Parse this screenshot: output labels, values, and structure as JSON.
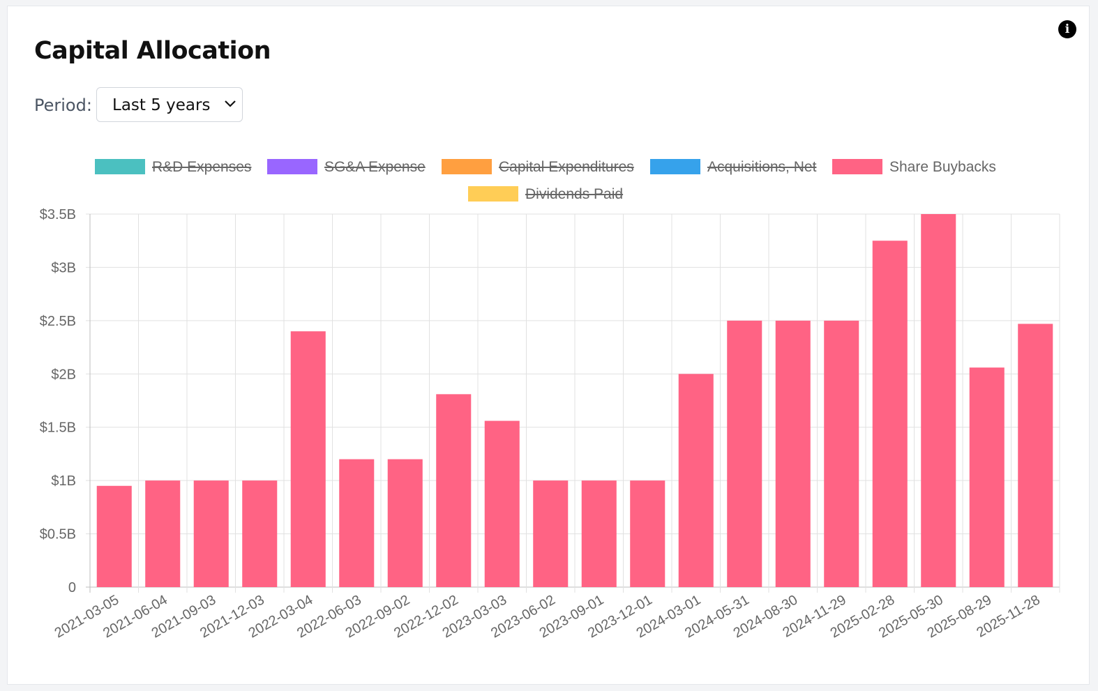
{
  "title": "Capital Allocation",
  "period": {
    "label": "Period:",
    "selected": "Last 5 years"
  },
  "legend": [
    {
      "name": "R&D Expenses",
      "color": "#4BC0C0",
      "hidden": true
    },
    {
      "name": "SG&A Expense",
      "color": "#9966FF",
      "hidden": true
    },
    {
      "name": "Capital Expenditures",
      "color": "#FF9F40",
      "hidden": true
    },
    {
      "name": "Acquisitions, Net",
      "color": "#36A2EB",
      "hidden": true
    },
    {
      "name": "Share Buybacks",
      "color": "#FF6384",
      "hidden": false
    },
    {
      "name": "Dividends Paid",
      "color": "#FFCD56",
      "hidden": true
    }
  ],
  "chart_data": {
    "type": "bar",
    "title": "Capital Allocation",
    "categories": [
      "2021-03-05",
      "2021-06-04",
      "2021-09-03",
      "2021-12-03",
      "2022-03-04",
      "2022-06-03",
      "2022-09-02",
      "2022-12-02",
      "2023-03-03",
      "2023-06-02",
      "2023-09-01",
      "2023-12-01",
      "2024-03-01",
      "2024-05-31",
      "2024-08-30",
      "2024-11-29",
      "2025-02-28",
      "2025-05-30",
      "2025-08-29",
      "2025-11-28"
    ],
    "series": [
      {
        "name": "Share Buybacks",
        "color": "#FF6384",
        "values": [
          0.95,
          1.0,
          1.0,
          1.0,
          2.4,
          1.2,
          1.2,
          1.81,
          1.56,
          1.0,
          1.0,
          1.0,
          2.0,
          2.5,
          2.5,
          2.5,
          3.25,
          3.5,
          2.06,
          2.47
        ]
      }
    ],
    "ylim": [
      0,
      3.5
    ],
    "yticks": [
      0,
      0.5,
      1,
      1.5,
      2,
      2.5,
      3,
      3.5
    ],
    "ytick_labels": [
      "0",
      "$0.5B",
      "$1B",
      "$1.5B",
      "$2B",
      "$2.5B",
      "$3B",
      "$3.5B"
    ],
    "unit": "USD billions",
    "xlabel": "",
    "ylabel": "",
    "grid": true
  }
}
